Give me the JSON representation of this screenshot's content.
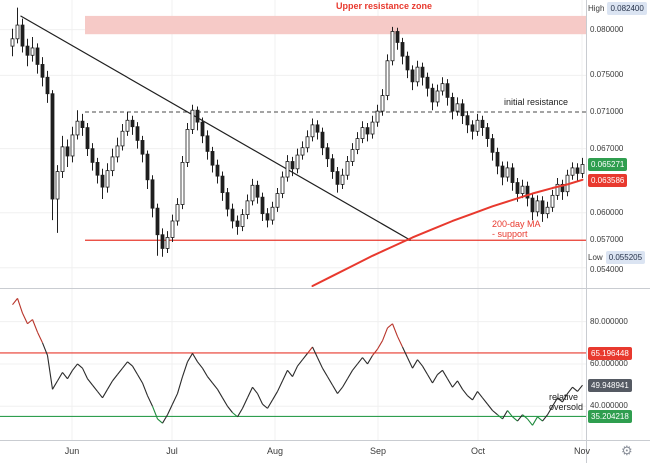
{
  "colors": {
    "accent_red": "#e8392e",
    "badge_green": "#2f9e4f",
    "badge_red": "#e8392e",
    "badge_dark": "#555a63",
    "badge_light": "#dbe4f2",
    "candle": "#1f1f1f",
    "candle_up_fill": "#ffffff",
    "ma_line": "#e8392e",
    "trendline": "#1f1f1f",
    "support_line": "#e8392e",
    "zone_fill": "#f6cac7",
    "dashed_resistance": "#4a4a4a",
    "rsi_line": "#2a2a2a",
    "rsi_overbought": "#b8342a",
    "rsi_oversold": "#1f8a3d",
    "band_red": "#e8392e",
    "band_green": "#2f9e4f",
    "grid": "#f0f0f0",
    "separator": "#c9ccd1",
    "axis_text": "#3a3a3a"
  },
  "annotations": {
    "upper_resistance_zone": "Upper resistance zone",
    "initial_resistance": "initial resistance",
    "ma_support_line1": "200-day MA",
    "ma_support_line2": "- support",
    "relative_line1": "relative",
    "relative_line2": "oversold"
  },
  "price_axis": {
    "labels": [
      {
        "prefix": "High",
        "value": "0.082400",
        "kind": "range"
      },
      {
        "value": "0.080000",
        "kind": "plain"
      },
      {
        "value": "0.075000",
        "kind": "plain"
      },
      {
        "value": "0.071000",
        "kind": "plain"
      },
      {
        "value": "0.067000",
        "kind": "plain"
      },
      {
        "value": "0.065271",
        "kind": "last-price-green"
      },
      {
        "value": "0.063586",
        "kind": "ma-value-red"
      },
      {
        "value": "0.060000",
        "kind": "plain"
      },
      {
        "value": "0.057000",
        "kind": "plain"
      },
      {
        "prefix": "Low",
        "value": "0.055205",
        "kind": "range"
      },
      {
        "value": "0.054000",
        "kind": "plain"
      }
    ]
  },
  "rsi_axis": {
    "labels": [
      {
        "value": "80.000000",
        "kind": "plain"
      },
      {
        "value": "65.196448",
        "kind": "band-red"
      },
      {
        "value": "60.000000",
        "kind": "plain"
      },
      {
        "value": "49.948941",
        "kind": "value-dark"
      },
      {
        "value": "40.000000",
        "kind": "plain"
      },
      {
        "value": "35.204218",
        "kind": "band-green"
      }
    ]
  },
  "time_axis": {
    "months": [
      "Jun",
      "Jul",
      "Aug",
      "Sep",
      "Oct",
      "Nov"
    ]
  },
  "icons": {
    "settings": "⚙"
  },
  "chart_data": [
    {
      "type": "candlestick",
      "x_months": [
        "Jun",
        "Jul",
        "Aug",
        "Sep",
        "Oct",
        "Nov"
      ],
      "y_range": [
        0.052,
        0.0828
      ],
      "y_ticks": [
        0.0824,
        0.08,
        0.075,
        0.071,
        0.067,
        0.065271,
        0.063586,
        0.06,
        0.057,
        0.055205,
        0.054
      ],
      "h_grid": [
        0.08,
        0.075,
        0.067,
        0.06,
        0.054
      ],
      "high": 0.0824,
      "low": 0.055205,
      "last_price": 0.065271,
      "ma200_last": 0.063586,
      "overlays": {
        "resistance_zone": {
          "from": 0.0795,
          "to": 0.0815
        },
        "initial_resistance_level": 0.071,
        "support_level": 0.057,
        "trendline": [
          [
            1.6,
            0.0815
          ],
          [
            79.6,
            0.057
          ]
        ],
        "ma200": [
          [
            60,
            0.052
          ],
          [
            64,
            0.0531
          ],
          [
            68,
            0.0542
          ],
          [
            72,
            0.0553
          ],
          [
            76,
            0.0563
          ],
          [
            80,
            0.0573
          ],
          [
            84,
            0.0582
          ],
          [
            88,
            0.0591
          ],
          [
            92,
            0.0599
          ],
          [
            96,
            0.0607
          ],
          [
            100,
            0.0614
          ],
          [
            104,
            0.0621
          ],
          [
            108,
            0.0627
          ],
          [
            111,
            0.0631
          ],
          [
            114,
            0.0636
          ]
        ]
      },
      "candles": [
        [
          0.0782,
          0.0801,
          0.0771,
          0.079
        ],
        [
          0.079,
          0.0824,
          0.0785,
          0.0805
        ],
        [
          0.0805,
          0.0812,
          0.0775,
          0.0782
        ],
        [
          0.0782,
          0.079,
          0.076,
          0.0772
        ],
        [
          0.0772,
          0.0792,
          0.0765,
          0.078
        ],
        [
          0.078,
          0.0785,
          0.0752,
          0.0762
        ],
        [
          0.0762,
          0.077,
          0.0738,
          0.0748
        ],
        [
          0.0748,
          0.0755,
          0.072,
          0.073
        ],
        [
          0.073,
          0.0734,
          0.0592,
          0.0615
        ],
        [
          0.0615,
          0.0652,
          0.0578,
          0.0645
        ],
        [
          0.0645,
          0.0684,
          0.0638,
          0.0672
        ],
        [
          0.0672,
          0.068,
          0.065,
          0.0662
        ],
        [
          0.0662,
          0.0694,
          0.0655,
          0.0685
        ],
        [
          0.0685,
          0.0712,
          0.068,
          0.07
        ],
        [
          0.07,
          0.0708,
          0.0684,
          0.0693
        ],
        [
          0.0693,
          0.0698,
          0.0662,
          0.067
        ],
        [
          0.067,
          0.0676,
          0.0646,
          0.0655
        ],
        [
          0.0655,
          0.066,
          0.0632,
          0.0641
        ],
        [
          0.0641,
          0.0648,
          0.0615,
          0.0628
        ],
        [
          0.0628,
          0.0654,
          0.0622,
          0.0646
        ],
        [
          0.0646,
          0.067,
          0.064,
          0.0661
        ],
        [
          0.0661,
          0.0682,
          0.0655,
          0.0673
        ],
        [
          0.0673,
          0.0697,
          0.0668,
          0.0689
        ],
        [
          0.0689,
          0.071,
          0.0684,
          0.0701
        ],
        [
          0.0701,
          0.0706,
          0.0685,
          0.0694
        ],
        [
          0.0694,
          0.0699,
          0.067,
          0.0679
        ],
        [
          0.0679,
          0.0684,
          0.0655,
          0.0664
        ],
        [
          0.0664,
          0.0668,
          0.0626,
          0.0636
        ],
        [
          0.0636,
          0.0641,
          0.0595,
          0.0605
        ],
        [
          0.0605,
          0.061,
          0.0553,
          0.0576
        ],
        [
          0.0576,
          0.0583,
          0.0552,
          0.0561
        ],
        [
          0.0561,
          0.058,
          0.0556,
          0.0573
        ],
        [
          0.0573,
          0.0598,
          0.0568,
          0.0591
        ],
        [
          0.0591,
          0.0616,
          0.0586,
          0.0609
        ],
        [
          0.0609,
          0.0662,
          0.0604,
          0.0655
        ],
        [
          0.0655,
          0.0698,
          0.065,
          0.0691
        ],
        [
          0.0691,
          0.0718,
          0.0686,
          0.0712
        ],
        [
          0.0712,
          0.0716,
          0.069,
          0.0699
        ],
        [
          0.0699,
          0.0704,
          0.0676,
          0.0684
        ],
        [
          0.0684,
          0.069,
          0.0658,
          0.0667
        ],
        [
          0.0667,
          0.0672,
          0.0644,
          0.0652
        ],
        [
          0.0652,
          0.0658,
          0.0632,
          0.064
        ],
        [
          0.064,
          0.0645,
          0.0613,
          0.0622
        ],
        [
          0.0622,
          0.0627,
          0.0596,
          0.0604
        ],
        [
          0.0604,
          0.061,
          0.0583,
          0.0591
        ],
        [
          0.0591,
          0.0597,
          0.0576,
          0.0585
        ],
        [
          0.0585,
          0.0604,
          0.058,
          0.0598
        ],
        [
          0.0598,
          0.062,
          0.0593,
          0.0613
        ],
        [
          0.0613,
          0.0637,
          0.0608,
          0.063
        ],
        [
          0.063,
          0.0635,
          0.061,
          0.0617
        ],
        [
          0.0617,
          0.0622,
          0.0591,
          0.0599
        ],
        [
          0.0599,
          0.0605,
          0.0584,
          0.0592
        ],
        [
          0.0592,
          0.0612,
          0.0587,
          0.0606
        ],
        [
          0.0606,
          0.0627,
          0.0601,
          0.0621
        ],
        [
          0.0621,
          0.0645,
          0.0616,
          0.0639
        ],
        [
          0.0639,
          0.0663,
          0.0634,
          0.0656
        ],
        [
          0.0656,
          0.0661,
          0.064,
          0.0648
        ],
        [
          0.0648,
          0.067,
          0.0643,
          0.0663
        ],
        [
          0.0663,
          0.0678,
          0.0658,
          0.0671
        ],
        [
          0.0671,
          0.069,
          0.0666,
          0.0683
        ],
        [
          0.0683,
          0.0703,
          0.0678,
          0.0696
        ],
        [
          0.0696,
          0.0701,
          0.068,
          0.0688
        ],
        [
          0.0688,
          0.0693,
          0.0663,
          0.0671
        ],
        [
          0.0671,
          0.0676,
          0.065,
          0.0659
        ],
        [
          0.0659,
          0.0664,
          0.0637,
          0.0645
        ],
        [
          0.0645,
          0.065,
          0.0622,
          0.0631
        ],
        [
          0.0631,
          0.0648,
          0.0626,
          0.0641
        ],
        [
          0.0641,
          0.0662,
          0.0636,
          0.0656
        ],
        [
          0.0656,
          0.0676,
          0.0651,
          0.0669
        ],
        [
          0.0669,
          0.0688,
          0.0664,
          0.0681
        ],
        [
          0.0681,
          0.07,
          0.0676,
          0.0693
        ],
        [
          0.0693,
          0.0698,
          0.0678,
          0.0686
        ],
        [
          0.0686,
          0.0706,
          0.0681,
          0.0699
        ],
        [
          0.0699,
          0.0718,
          0.0694,
          0.0711
        ],
        [
          0.0711,
          0.0735,
          0.0706,
          0.0728
        ],
        [
          0.0728,
          0.0773,
          0.0723,
          0.0766
        ],
        [
          0.0766,
          0.0803,
          0.0761,
          0.0798
        ],
        [
          0.0798,
          0.0802,
          0.0778,
          0.0786
        ],
        [
          0.0786,
          0.0791,
          0.0762,
          0.0771
        ],
        [
          0.0771,
          0.0776,
          0.0747,
          0.0756
        ],
        [
          0.0756,
          0.0761,
          0.0734,
          0.0743
        ],
        [
          0.0743,
          0.0766,
          0.0738,
          0.0759
        ],
        [
          0.0759,
          0.0764,
          0.0739,
          0.0748
        ],
        [
          0.0748,
          0.0753,
          0.0727,
          0.0736
        ],
        [
          0.0736,
          0.0741,
          0.0712,
          0.0721
        ],
        [
          0.0721,
          0.074,
          0.0716,
          0.0733
        ],
        [
          0.0733,
          0.0748,
          0.0728,
          0.0741
        ],
        [
          0.0741,
          0.0746,
          0.0717,
          0.0726
        ],
        [
          0.0726,
          0.0731,
          0.0702,
          0.0711
        ],
        [
          0.0711,
          0.0726,
          0.0706,
          0.0719
        ],
        [
          0.0719,
          0.0724,
          0.0697,
          0.0706
        ],
        [
          0.0706,
          0.0711,
          0.0687,
          0.0696
        ],
        [
          0.0696,
          0.0701,
          0.068,
          0.0689
        ],
        [
          0.0689,
          0.0708,
          0.0684,
          0.0701
        ],
        [
          0.0701,
          0.0706,
          0.0684,
          0.0693
        ],
        [
          0.0693,
          0.0698,
          0.0672,
          0.0681
        ],
        [
          0.0681,
          0.0686,
          0.0657,
          0.0666
        ],
        [
          0.0666,
          0.0671,
          0.0642,
          0.0651
        ],
        [
          0.0651,
          0.0656,
          0.063,
          0.0639
        ],
        [
          0.0639,
          0.0656,
          0.0634,
          0.0649
        ],
        [
          0.0649,
          0.0654,
          0.0624,
          0.0633
        ],
        [
          0.0633,
          0.0638,
          0.0612,
          0.0621
        ],
        [
          0.0621,
          0.0636,
          0.0616,
          0.0629
        ],
        [
          0.0629,
          0.0634,
          0.0607,
          0.0616
        ],
        [
          0.0616,
          0.0621,
          0.0592,
          0.0601
        ],
        [
          0.0601,
          0.0619,
          0.0596,
          0.0613
        ],
        [
          0.0613,
          0.0618,
          0.059,
          0.0599
        ],
        [
          0.0599,
          0.0612,
          0.0594,
          0.0606
        ],
        [
          0.0606,
          0.0625,
          0.0601,
          0.0619
        ],
        [
          0.0619,
          0.0638,
          0.0614,
          0.0631
        ],
        [
          0.0631,
          0.0636,
          0.0614,
          0.0623
        ],
        [
          0.0623,
          0.0647,
          0.0618,
          0.0641
        ],
        [
          0.0641,
          0.0655,
          0.0636,
          0.0649
        ],
        [
          0.0649,
          0.0654,
          0.0634,
          0.0643
        ],
        [
          0.0643,
          0.066,
          0.0638,
          0.06527
        ]
      ]
    },
    {
      "type": "line",
      "name": "relative strength index",
      "y_range": [
        25,
        94
      ],
      "y_ticks": [
        80,
        65.196448,
        60,
        49.948941,
        40,
        35.204218
      ],
      "gridlines": [
        80,
        60,
        40
      ],
      "upper_band": 65.196448,
      "lower_band": 35.204218,
      "last_value": 49.948941,
      "values": [
        88,
        91,
        84,
        79,
        81,
        75,
        70,
        64,
        48,
        52,
        56,
        53,
        57,
        60,
        58,
        53,
        50,
        47,
        44,
        48,
        52,
        55,
        58,
        61,
        59,
        55,
        51,
        45,
        40,
        34,
        32,
        36,
        41,
        46,
        54,
        61,
        65,
        61,
        58,
        54,
        51,
        48,
        44,
        40,
        37,
        35,
        39,
        44,
        49,
        46,
        41,
        39,
        43,
        47,
        52,
        57,
        54,
        59,
        62,
        65,
        68,
        63,
        58,
        54,
        50,
        46,
        49,
        53,
        57,
        60,
        63,
        60,
        64,
        67,
        71,
        77,
        79,
        73,
        68,
        63,
        58,
        62,
        59,
        55,
        51,
        55,
        57,
        53,
        49,
        52,
        48,
        45,
        43,
        47,
        44,
        41,
        38,
        36,
        34,
        38,
        35,
        33,
        36,
        34,
        31,
        35,
        33,
        36,
        40,
        44,
        42,
        46,
        49,
        47,
        49.95
      ]
    }
  ]
}
